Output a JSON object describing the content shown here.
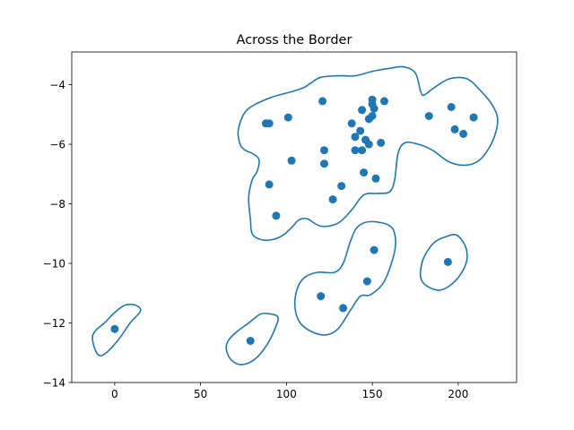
{
  "chart_data": {
    "type": "scatter",
    "title": "Across the Border",
    "xlabel": "",
    "ylabel": "",
    "xlim": [
      -25,
      234
    ],
    "ylim": [
      -14,
      -2.9
    ],
    "xticks": [
      0,
      50,
      100,
      150,
      200
    ],
    "xtick_labels": [
      "0",
      "50",
      "100",
      "150",
      "200"
    ],
    "yticks": [
      -14,
      -12,
      -10,
      -8,
      -6,
      -4
    ],
    "ytick_labels": [
      "−14",
      "−12",
      "−10",
      "−8",
      "−6",
      "−4"
    ],
    "grid": false,
    "legend": "none",
    "color": "#1f77b4",
    "points": [
      {
        "x": 0,
        "y": -12.2
      },
      {
        "x": 79,
        "y": -12.6
      },
      {
        "x": 120,
        "y": -11.1
      },
      {
        "x": 133,
        "y": -11.5
      },
      {
        "x": 147,
        "y": -10.6
      },
      {
        "x": 151,
        "y": -9.55
      },
      {
        "x": 194,
        "y": -9.95
      },
      {
        "x": 88,
        "y": -5.3
      },
      {
        "x": 90,
        "y": -5.3
      },
      {
        "x": 101,
        "y": -5.1
      },
      {
        "x": 121,
        "y": -4.55
      },
      {
        "x": 103,
        "y": -6.55
      },
      {
        "x": 90,
        "y": -7.35
      },
      {
        "x": 94,
        "y": -8.4
      },
      {
        "x": 122,
        "y": -6.2
      },
      {
        "x": 122,
        "y": -6.65
      },
      {
        "x": 132,
        "y": -7.4
      },
      {
        "x": 127,
        "y": -7.85
      },
      {
        "x": 138,
        "y": -5.3
      },
      {
        "x": 140,
        "y": -5.75
      },
      {
        "x": 143,
        "y": -5.55
      },
      {
        "x": 144,
        "y": -4.85
      },
      {
        "x": 140,
        "y": -6.2
      },
      {
        "x": 144,
        "y": -6.2
      },
      {
        "x": 146,
        "y": -5.85
      },
      {
        "x": 148,
        "y": -6.0
      },
      {
        "x": 148,
        "y": -5.15
      },
      {
        "x": 150,
        "y": -5.05
      },
      {
        "x": 150,
        "y": -4.5
      },
      {
        "x": 150,
        "y": -4.65
      },
      {
        "x": 151,
        "y": -4.8
      },
      {
        "x": 157,
        "y": -4.55
      },
      {
        "x": 155,
        "y": -5.95
      },
      {
        "x": 152,
        "y": -7.15
      },
      {
        "x": 145,
        "y": -6.95
      },
      {
        "x": 183,
        "y": -5.05
      },
      {
        "x": 196,
        "y": -4.75
      },
      {
        "x": 198,
        "y": -5.5
      },
      {
        "x": 203,
        "y": -5.65
      },
      {
        "x": 209,
        "y": -5.1
      }
    ],
    "regions": [
      {
        "points": [
          [
            -13,
            -12.5
          ],
          [
            -11,
            -12.95
          ],
          [
            -8,
            -13.1
          ],
          [
            -3,
            -12.9
          ],
          [
            3,
            -12.5
          ],
          [
            9,
            -12.0
          ],
          [
            15,
            -11.6
          ],
          [
            12,
            -11.4
          ],
          [
            6,
            -11.4
          ],
          [
            0,
            -11.65
          ],
          [
            -6,
            -12.0
          ],
          [
            -11,
            -12.25
          ]
        ]
      },
      {
        "points": [
          [
            65,
            -12.9
          ],
          [
            68,
            -13.25
          ],
          [
            74,
            -13.4
          ],
          [
            82,
            -13.2
          ],
          [
            89,
            -12.7
          ],
          [
            94,
            -12.1
          ],
          [
            95,
            -11.8
          ],
          [
            91,
            -11.7
          ],
          [
            85,
            -11.7
          ],
          [
            78,
            -12.0
          ],
          [
            71,
            -12.3
          ],
          [
            66,
            -12.6
          ]
        ]
      },
      {
        "points": [
          [
            105,
            -11.5
          ],
          [
            106,
            -10.9
          ],
          [
            110,
            -10.5
          ],
          [
            118,
            -10.3
          ],
          [
            128,
            -10.3
          ],
          [
            133,
            -10.0
          ],
          [
            137,
            -9.3
          ],
          [
            141,
            -8.8
          ],
          [
            148,
            -8.6
          ],
          [
            159,
            -8.7
          ],
          [
            163,
            -9.0
          ],
          [
            163,
            -9.6
          ],
          [
            157,
            -10.6
          ],
          [
            149,
            -11.05
          ],
          [
            143,
            -11.1
          ],
          [
            137,
            -11.6
          ],
          [
            130,
            -12.2
          ],
          [
            123,
            -12.4
          ],
          [
            115,
            -12.3
          ],
          [
            108,
            -12.0
          ]
        ]
      },
      {
        "points": [
          [
            178,
            -10.3
          ],
          [
            180,
            -9.8
          ],
          [
            186,
            -9.3
          ],
          [
            193,
            -9.1
          ],
          [
            199,
            -9.05
          ],
          [
            204,
            -9.4
          ],
          [
            205,
            -9.9
          ],
          [
            201,
            -10.4
          ],
          [
            195,
            -10.75
          ],
          [
            189,
            -10.9
          ],
          [
            183,
            -10.8
          ],
          [
            179,
            -10.6
          ]
        ]
      },
      {
        "points": [
          [
            73,
            -6.0
          ],
          [
            72,
            -5.5
          ],
          [
            77,
            -4.85
          ],
          [
            90,
            -4.45
          ],
          [
            102,
            -4.25
          ],
          [
            110,
            -4.1
          ],
          [
            114,
            -3.95
          ],
          [
            120,
            -3.75
          ],
          [
            130,
            -3.7
          ],
          [
            140,
            -3.7
          ],
          [
            150,
            -3.55
          ],
          [
            160,
            -3.45
          ],
          [
            168,
            -3.4
          ],
          [
            175,
            -3.6
          ],
          [
            178,
            -4.2
          ],
          [
            180,
            -4.35
          ],
          [
            186,
            -4.1
          ],
          [
            195,
            -3.8
          ],
          [
            205,
            -3.8
          ],
          [
            213,
            -4.2
          ],
          [
            220,
            -4.7
          ],
          [
            223,
            -5.2
          ],
          [
            220,
            -5.9
          ],
          [
            213,
            -6.5
          ],
          [
            205,
            -6.7
          ],
          [
            195,
            -6.6
          ],
          [
            185,
            -6.2
          ],
          [
            177,
            -6.0
          ],
          [
            169,
            -5.95
          ],
          [
            165,
            -6.3
          ],
          [
            163,
            -7.2
          ],
          [
            160,
            -7.6
          ],
          [
            153,
            -7.65
          ],
          [
            145,
            -7.7
          ],
          [
            138,
            -8.2
          ],
          [
            130,
            -8.65
          ],
          [
            120,
            -8.75
          ],
          [
            112,
            -8.5
          ],
          [
            107,
            -8.55
          ],
          [
            103,
            -8.8
          ],
          [
            98,
            -9.05
          ],
          [
            92,
            -9.2
          ],
          [
            85,
            -9.2
          ],
          [
            80,
            -9.0
          ],
          [
            79,
            -8.5
          ],
          [
            78,
            -7.8
          ],
          [
            80,
            -7.2
          ],
          [
            83,
            -6.9
          ],
          [
            84,
            -6.5
          ],
          [
            80,
            -6.3
          ],
          [
            76,
            -6.2
          ]
        ]
      }
    ]
  }
}
